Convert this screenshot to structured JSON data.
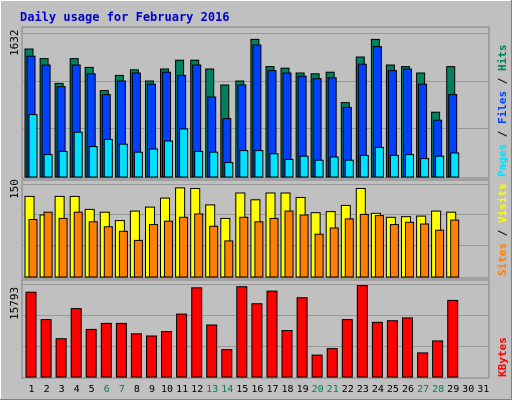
{
  "colors": {
    "frame": "#C0C0C0",
    "plot_bg": "#C0C0C0",
    "title": "#0000CC",
    "hits": "#00805C",
    "files": "#0040FF",
    "pages": "#00E0FF",
    "visits": "#FFFF00",
    "sites": "#FF8000",
    "kbytes": "#FF0000",
    "weekend_label": "#00805C"
  },
  "chart_data": [
    {
      "type": "bar",
      "title": "Daily usage for February 2016",
      "categories": [
        "1",
        "2",
        "3",
        "4",
        "5",
        "6",
        "7",
        "8",
        "9",
        "10",
        "11",
        "12",
        "13",
        "14",
        "15",
        "16",
        "17",
        "18",
        "19",
        "20",
        "21",
        "22",
        "23",
        "24",
        "25",
        "26",
        "27",
        "28",
        "29",
        "30",
        "31"
      ],
      "weekend_days": [
        "6",
        "7",
        "13",
        "14",
        "20",
        "21",
        "27",
        "28"
      ],
      "ymax_label": "1632",
      "legend": [
        "Pages",
        "Files",
        "Hits"
      ],
      "series": [
        {
          "name": "Hits",
          "values": [
            1600,
            1480,
            1170,
            1480,
            1370,
            1080,
            1270,
            1340,
            1200,
            1350,
            1460,
            1460,
            1350,
            1150,
            1200,
            1720,
            1380,
            1360,
            1300,
            1290,
            1310,
            930,
            1500,
            1720,
            1400,
            1380,
            1300,
            810,
            1380,
            0,
            0
          ]
        },
        {
          "name": "Files",
          "values": [
            1510,
            1400,
            1130,
            1400,
            1290,
            1030,
            1200,
            1300,
            1160,
            1310,
            1270,
            1400,
            1000,
            730,
            1150,
            1650,
            1330,
            1300,
            1260,
            1230,
            1240,
            870,
            1410,
            1630,
            1330,
            1350,
            1160,
            710,
            1030,
            0,
            0
          ]
        },
        {
          "name": "Pages",
          "values": [
            780,
            280,
            320,
            560,
            380,
            470,
            410,
            310,
            350,
            450,
            600,
            320,
            310,
            180,
            330,
            330,
            290,
            220,
            260,
            210,
            250,
            210,
            270,
            370,
            270,
            280,
            230,
            260,
            300,
            0,
            0
          ]
        }
      ]
    },
    {
      "type": "bar",
      "categories": [
        "1",
        "2",
        "3",
        "4",
        "5",
        "6",
        "7",
        "8",
        "9",
        "10",
        "11",
        "12",
        "13",
        "14",
        "15",
        "16",
        "17",
        "18",
        "19",
        "20",
        "21",
        "22",
        "23",
        "24",
        "25",
        "26",
        "27",
        "28",
        "29",
        "30",
        "31"
      ],
      "ymax_label": "150",
      "legend": [
        "Sites",
        "Visits"
      ],
      "series": [
        {
          "name": "Visits",
          "values": [
            143,
            110,
            143,
            143,
            120,
            115,
            100,
            117,
            124,
            140,
            158,
            157,
            128,
            104,
            149,
            137,
            149,
            149,
            141,
            114,
            116,
            127,
            157,
            113,
            106,
            107,
            108,
            117,
            115,
            0,
            0
          ]
        },
        {
          "name": "Sites",
          "values": [
            102,
            115,
            104,
            115,
            98,
            89,
            81,
            65,
            93,
            99,
            106,
            112,
            90,
            64,
            106,
            98,
            104,
            117,
            110,
            76,
            87,
            103,
            111,
            109,
            93,
            97,
            94,
            83,
            101,
            0,
            0
          ]
        }
      ]
    },
    {
      "type": "bar",
      "categories": [
        "1",
        "2",
        "3",
        "4",
        "5",
        "6",
        "7",
        "8",
        "9",
        "10",
        "11",
        "12",
        "13",
        "14",
        "15",
        "16",
        "17",
        "18",
        "19",
        "20",
        "21",
        "22",
        "23",
        "24",
        "25",
        "26",
        "27",
        "28",
        "29",
        "30",
        "31"
      ],
      "ymax_label": "15793",
      "legend": [
        "KBytes"
      ],
      "series": [
        {
          "name": "KBytes",
          "values": [
            15500,
            10500,
            7000,
            12500,
            8700,
            9800,
            9800,
            7900,
            7500,
            8300,
            11500,
            16300,
            9500,
            5000,
            16500,
            13400,
            15700,
            8500,
            14500,
            4000,
            5200,
            10500,
            16700,
            10000,
            10300,
            10800,
            4400,
            6600,
            14000,
            0,
            0
          ]
        }
      ]
    }
  ]
}
